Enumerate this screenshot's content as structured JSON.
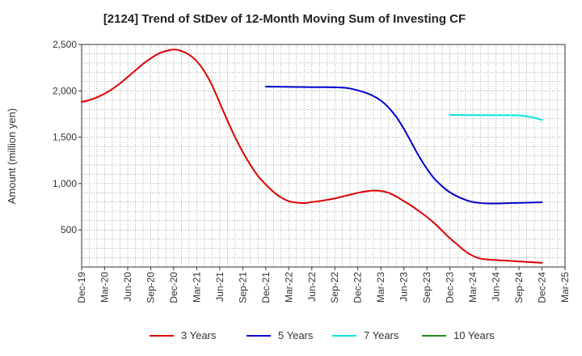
{
  "chart_data": {
    "type": "line",
    "title": "[2124]  Trend of StDev of 12-Month Moving Sum of Investing CF",
    "xlabel": "",
    "ylabel": "Amount (million yen)",
    "ylim": [
      100,
      2500
    ],
    "yticks": [
      500,
      1000,
      1500,
      2000,
      2500
    ],
    "ytick_labels": [
      "500",
      "1,000",
      "1,500",
      "2,000",
      "2,500"
    ],
    "xlim": [
      "2019-12",
      "2025-03"
    ],
    "xtick_labels": [
      "Dec-19",
      "Mar-20",
      "Jun-20",
      "Sep-20",
      "Dec-20",
      "Mar-21",
      "Jun-21",
      "Sep-21",
      "Dec-21",
      "Mar-22",
      "Jun-22",
      "Sep-22",
      "Dec-22",
      "Mar-23",
      "Jun-23",
      "Sep-23",
      "Dec-23",
      "Mar-24",
      "Jun-24",
      "Sep-24",
      "Dec-24",
      "Mar-25"
    ],
    "grid": true,
    "legend_position": "bottom",
    "series": [
      {
        "name": "3 Years",
        "color": "#dd0000",
        "x": [
          "2019-12",
          "2020-01",
          "2020-02",
          "2020-03",
          "2020-04",
          "2020-05",
          "2020-06",
          "2020-07",
          "2020-08",
          "2020-09",
          "2020-10",
          "2020-11",
          "2020-12",
          "2021-01",
          "2021-02",
          "2021-03",
          "2021-04",
          "2021-05",
          "2021-06",
          "2021-07",
          "2021-08",
          "2021-09",
          "2021-10",
          "2021-11",
          "2021-12",
          "2022-01",
          "2022-02",
          "2022-03",
          "2022-04",
          "2022-05",
          "2022-06",
          "2022-07",
          "2022-08",
          "2022-09",
          "2022-10",
          "2022-11",
          "2022-12",
          "2023-01",
          "2023-02",
          "2023-03",
          "2023-04",
          "2023-05",
          "2023-06",
          "2023-07",
          "2023-08",
          "2023-09",
          "2023-10",
          "2023-11",
          "2023-12",
          "2024-01",
          "2024-02",
          "2024-03",
          "2024-04",
          "2024-05",
          "2024-06",
          "2024-07",
          "2024-08",
          "2024-09",
          "2024-10",
          "2024-11",
          "2024-12"
        ],
        "values": [
          1880,
          1900,
          1930,
          1970,
          2020,
          2080,
          2150,
          2220,
          2290,
          2350,
          2400,
          2430,
          2445,
          2430,
          2390,
          2320,
          2210,
          2060,
          1870,
          1680,
          1500,
          1340,
          1200,
          1080,
          990,
          910,
          850,
          810,
          795,
          790,
          800,
          810,
          825,
          840,
          860,
          880,
          900,
          915,
          925,
          920,
          900,
          860,
          810,
          760,
          700,
          640,
          570,
          490,
          410,
          340,
          270,
          220,
          190,
          180,
          175,
          170,
          165,
          160,
          155,
          150,
          145
        ]
      },
      {
        "name": "5 Years",
        "color": "#0000cc",
        "x": [
          "2021-12",
          "2022-01",
          "2022-02",
          "2022-03",
          "2022-04",
          "2022-05",
          "2022-06",
          "2022-07",
          "2022-08",
          "2022-09",
          "2022-10",
          "2022-11",
          "2022-12",
          "2023-01",
          "2023-02",
          "2023-03",
          "2023-04",
          "2023-05",
          "2023-06",
          "2023-07",
          "2023-08",
          "2023-09",
          "2023-10",
          "2023-11",
          "2023-12",
          "2024-01",
          "2024-02",
          "2024-03",
          "2024-04",
          "2024-05",
          "2024-06",
          "2024-07",
          "2024-08",
          "2024-09",
          "2024-10",
          "2024-11",
          "2024-12"
        ],
        "values": [
          2045,
          2045,
          2044,
          2043,
          2042,
          2041,
          2040,
          2040,
          2040,
          2039,
          2035,
          2025,
          2005,
          1980,
          1945,
          1895,
          1820,
          1720,
          1590,
          1440,
          1290,
          1160,
          1050,
          970,
          905,
          860,
          825,
          800,
          790,
          785,
          785,
          787,
          790,
          792,
          794,
          796,
          798
        ]
      },
      {
        "name": "7 Years",
        "color": "#00e5e5",
        "x": [
          "2023-12",
          "2024-01",
          "2024-02",
          "2024-03",
          "2024-04",
          "2024-05",
          "2024-06",
          "2024-07",
          "2024-08",
          "2024-09",
          "2024-10",
          "2024-11",
          "2024-12"
        ],
        "values": [
          1740,
          1740,
          1739,
          1739,
          1738,
          1738,
          1737,
          1737,
          1736,
          1735,
          1725,
          1710,
          1685
        ]
      },
      {
        "name": "10 Years",
        "color": "#228b22",
        "x": [],
        "values": []
      }
    ]
  }
}
